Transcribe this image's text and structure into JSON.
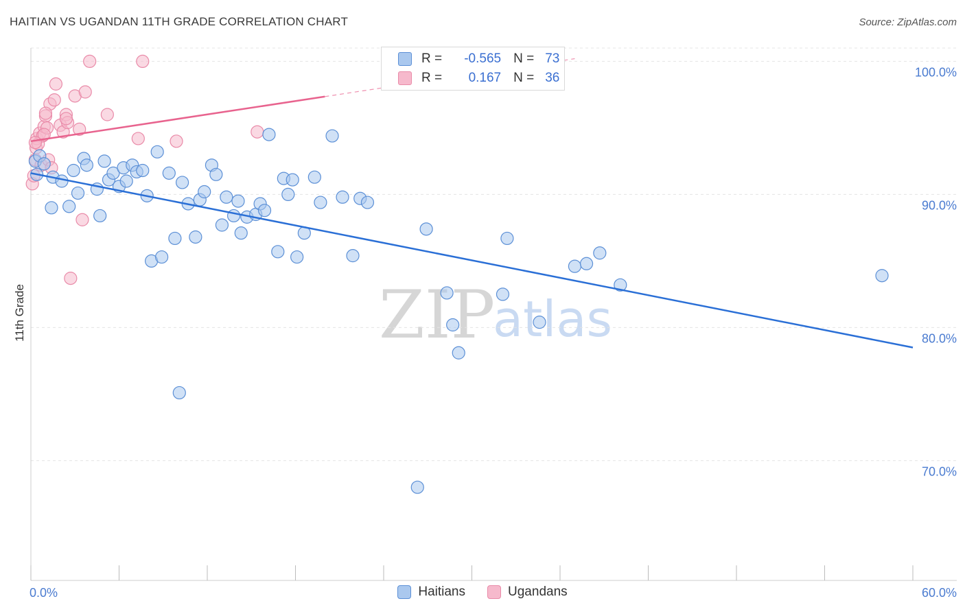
{
  "header": {
    "title": "HAITIAN VS UGANDAN 11TH GRADE CORRELATION CHART",
    "source": "Source: ZipAtlas.com"
  },
  "legend": {
    "rows": [
      {
        "r_label": "R =",
        "r_value": "-0.565",
        "n_label": "N =",
        "n_value": "73"
      },
      {
        "r_label": "R =",
        "r_value": "0.167",
        "n_label": "N =",
        "n_value": "36"
      }
    ]
  },
  "watermark": {
    "zip": "ZIP",
    "atlas": "atlas"
  },
  "colors": {
    "haitians_fill": "#aac8ee",
    "haitians_stroke": "#5b8fd6",
    "haitians_line": "#2a6fd6",
    "ugandans_fill": "#f6b9cc",
    "ugandans_stroke": "#e98aa8",
    "ugandans_line": "#e8638e",
    "grid": "#e4e4e4",
    "tick_text": "#4a7bd0"
  },
  "chart_data": {
    "type": "scatter",
    "title": "HAITIAN VS UGANDAN 11TH GRADE CORRELATION CHART",
    "xlabel": "",
    "ylabel": "11th Grade",
    "xlim": [
      0,
      60
    ],
    "ylim": [
      61,
      101
    ],
    "x_tick_labels": [
      "0.0%",
      "60.0%"
    ],
    "y_ticks": [
      70,
      80,
      90,
      100
    ],
    "y_tick_labels": [
      "70.0%",
      "80.0%",
      "90.0%",
      "100.0%"
    ],
    "grid": true,
    "legend_position": "bottom-center",
    "series": [
      {
        "name": "Haitians",
        "r": -0.565,
        "n": 73,
        "trend": {
          "x": [
            0,
            60
          ],
          "y": [
            91.6,
            78.5
          ],
          "dashed_from": null
        },
        "points": [
          [
            0.3,
            92.5
          ],
          [
            0.6,
            92.9
          ],
          [
            0.9,
            92.3
          ],
          [
            1.5,
            91.3
          ],
          [
            2.1,
            91.0
          ],
          [
            1.4,
            89.0
          ],
          [
            2.6,
            89.1
          ],
          [
            2.9,
            91.8
          ],
          [
            3.2,
            90.1
          ],
          [
            3.6,
            92.7
          ],
          [
            3.8,
            92.2
          ],
          [
            4.5,
            90.4
          ],
          [
            4.7,
            88.4
          ],
          [
            5.0,
            92.5
          ],
          [
            5.3,
            91.1
          ],
          [
            5.6,
            91.6
          ],
          [
            6.0,
            90.6
          ],
          [
            6.3,
            92.0
          ],
          [
            6.5,
            91.0
          ],
          [
            6.9,
            92.2
          ],
          [
            7.2,
            91.7
          ],
          [
            7.6,
            91.8
          ],
          [
            7.9,
            89.9
          ],
          [
            8.2,
            85.0
          ],
          [
            8.6,
            93.2
          ],
          [
            8.9,
            85.3
          ],
          [
            9.4,
            91.6
          ],
          [
            9.8,
            86.7
          ],
          [
            10.1,
            75.1
          ],
          [
            10.3,
            90.9
          ],
          [
            10.7,
            89.3
          ],
          [
            11.2,
            86.8
          ],
          [
            11.5,
            89.6
          ],
          [
            11.8,
            90.2
          ],
          [
            12.3,
            92.2
          ],
          [
            12.6,
            91.5
          ],
          [
            13.0,
            87.7
          ],
          [
            13.3,
            89.8
          ],
          [
            13.8,
            88.4
          ],
          [
            14.1,
            89.5
          ],
          [
            14.3,
            87.1
          ],
          [
            14.7,
            88.3
          ],
          [
            15.3,
            88.5
          ],
          [
            15.6,
            89.3
          ],
          [
            15.9,
            88.8
          ],
          [
            16.2,
            94.5
          ],
          [
            16.8,
            85.7
          ],
          [
            17.2,
            91.2
          ],
          [
            17.5,
            90.0
          ],
          [
            17.8,
            91.1
          ],
          [
            18.1,
            85.3
          ],
          [
            18.6,
            87.1
          ],
          [
            19.3,
            91.3
          ],
          [
            19.7,
            89.4
          ],
          [
            20.5,
            94.4
          ],
          [
            21.2,
            89.8
          ],
          [
            21.9,
            85.4
          ],
          [
            22.4,
            89.7
          ],
          [
            22.9,
            89.4
          ],
          [
            26.3,
            68.0
          ],
          [
            26.9,
            87.4
          ],
          [
            28.3,
            82.6
          ],
          [
            28.7,
            80.2
          ],
          [
            29.1,
            78.1
          ],
          [
            32.1,
            82.5
          ],
          [
            32.4,
            86.7
          ],
          [
            34.6,
            80.4
          ],
          [
            37.0,
            84.6
          ],
          [
            37.8,
            84.8
          ],
          [
            38.7,
            85.6
          ],
          [
            40.1,
            83.2
          ],
          [
            57.9,
            83.9
          ],
          [
            0.4,
            91.5
          ]
        ]
      },
      {
        "name": "Ugandans",
        "r": 0.167,
        "n": 36,
        "trend": {
          "x": [
            0,
            37
          ],
          "y": [
            94.0,
            100.2
          ],
          "dashed_from": 20
        },
        "points": [
          [
            0.1,
            90.8
          ],
          [
            0.2,
            91.4
          ],
          [
            0.3,
            92.6
          ],
          [
            0.35,
            93.5
          ],
          [
            0.4,
            94.2
          ],
          [
            0.5,
            93.8
          ],
          [
            0.6,
            94.6
          ],
          [
            0.7,
            92.2
          ],
          [
            0.8,
            94.4
          ],
          [
            0.9,
            95.1
          ],
          [
            1.0,
            95.9
          ],
          [
            1.1,
            95.0
          ],
          [
            1.2,
            92.6
          ],
          [
            1.3,
            96.8
          ],
          [
            1.4,
            92.0
          ],
          [
            1.6,
            97.1
          ],
          [
            1.7,
            98.3
          ],
          [
            2.0,
            95.2
          ],
          [
            2.2,
            94.7
          ],
          [
            2.4,
            96.0
          ],
          [
            2.5,
            95.4
          ],
          [
            2.7,
            83.7
          ],
          [
            3.0,
            97.4
          ],
          [
            3.3,
            94.9
          ],
          [
            3.5,
            88.1
          ],
          [
            3.7,
            97.7
          ],
          [
            4.0,
            100.0
          ],
          [
            5.2,
            96.0
          ],
          [
            7.3,
            94.2
          ],
          [
            7.6,
            100.0
          ],
          [
            9.9,
            94.0
          ],
          [
            15.4,
            94.7
          ],
          [
            1.0,
            96.1
          ],
          [
            2.4,
            95.7
          ],
          [
            0.9,
            94.5
          ],
          [
            0.3,
            93.9
          ]
        ]
      }
    ]
  },
  "bottom_legend": {
    "items": [
      {
        "label": "Haitians"
      },
      {
        "label": "Ugandans"
      }
    ]
  }
}
